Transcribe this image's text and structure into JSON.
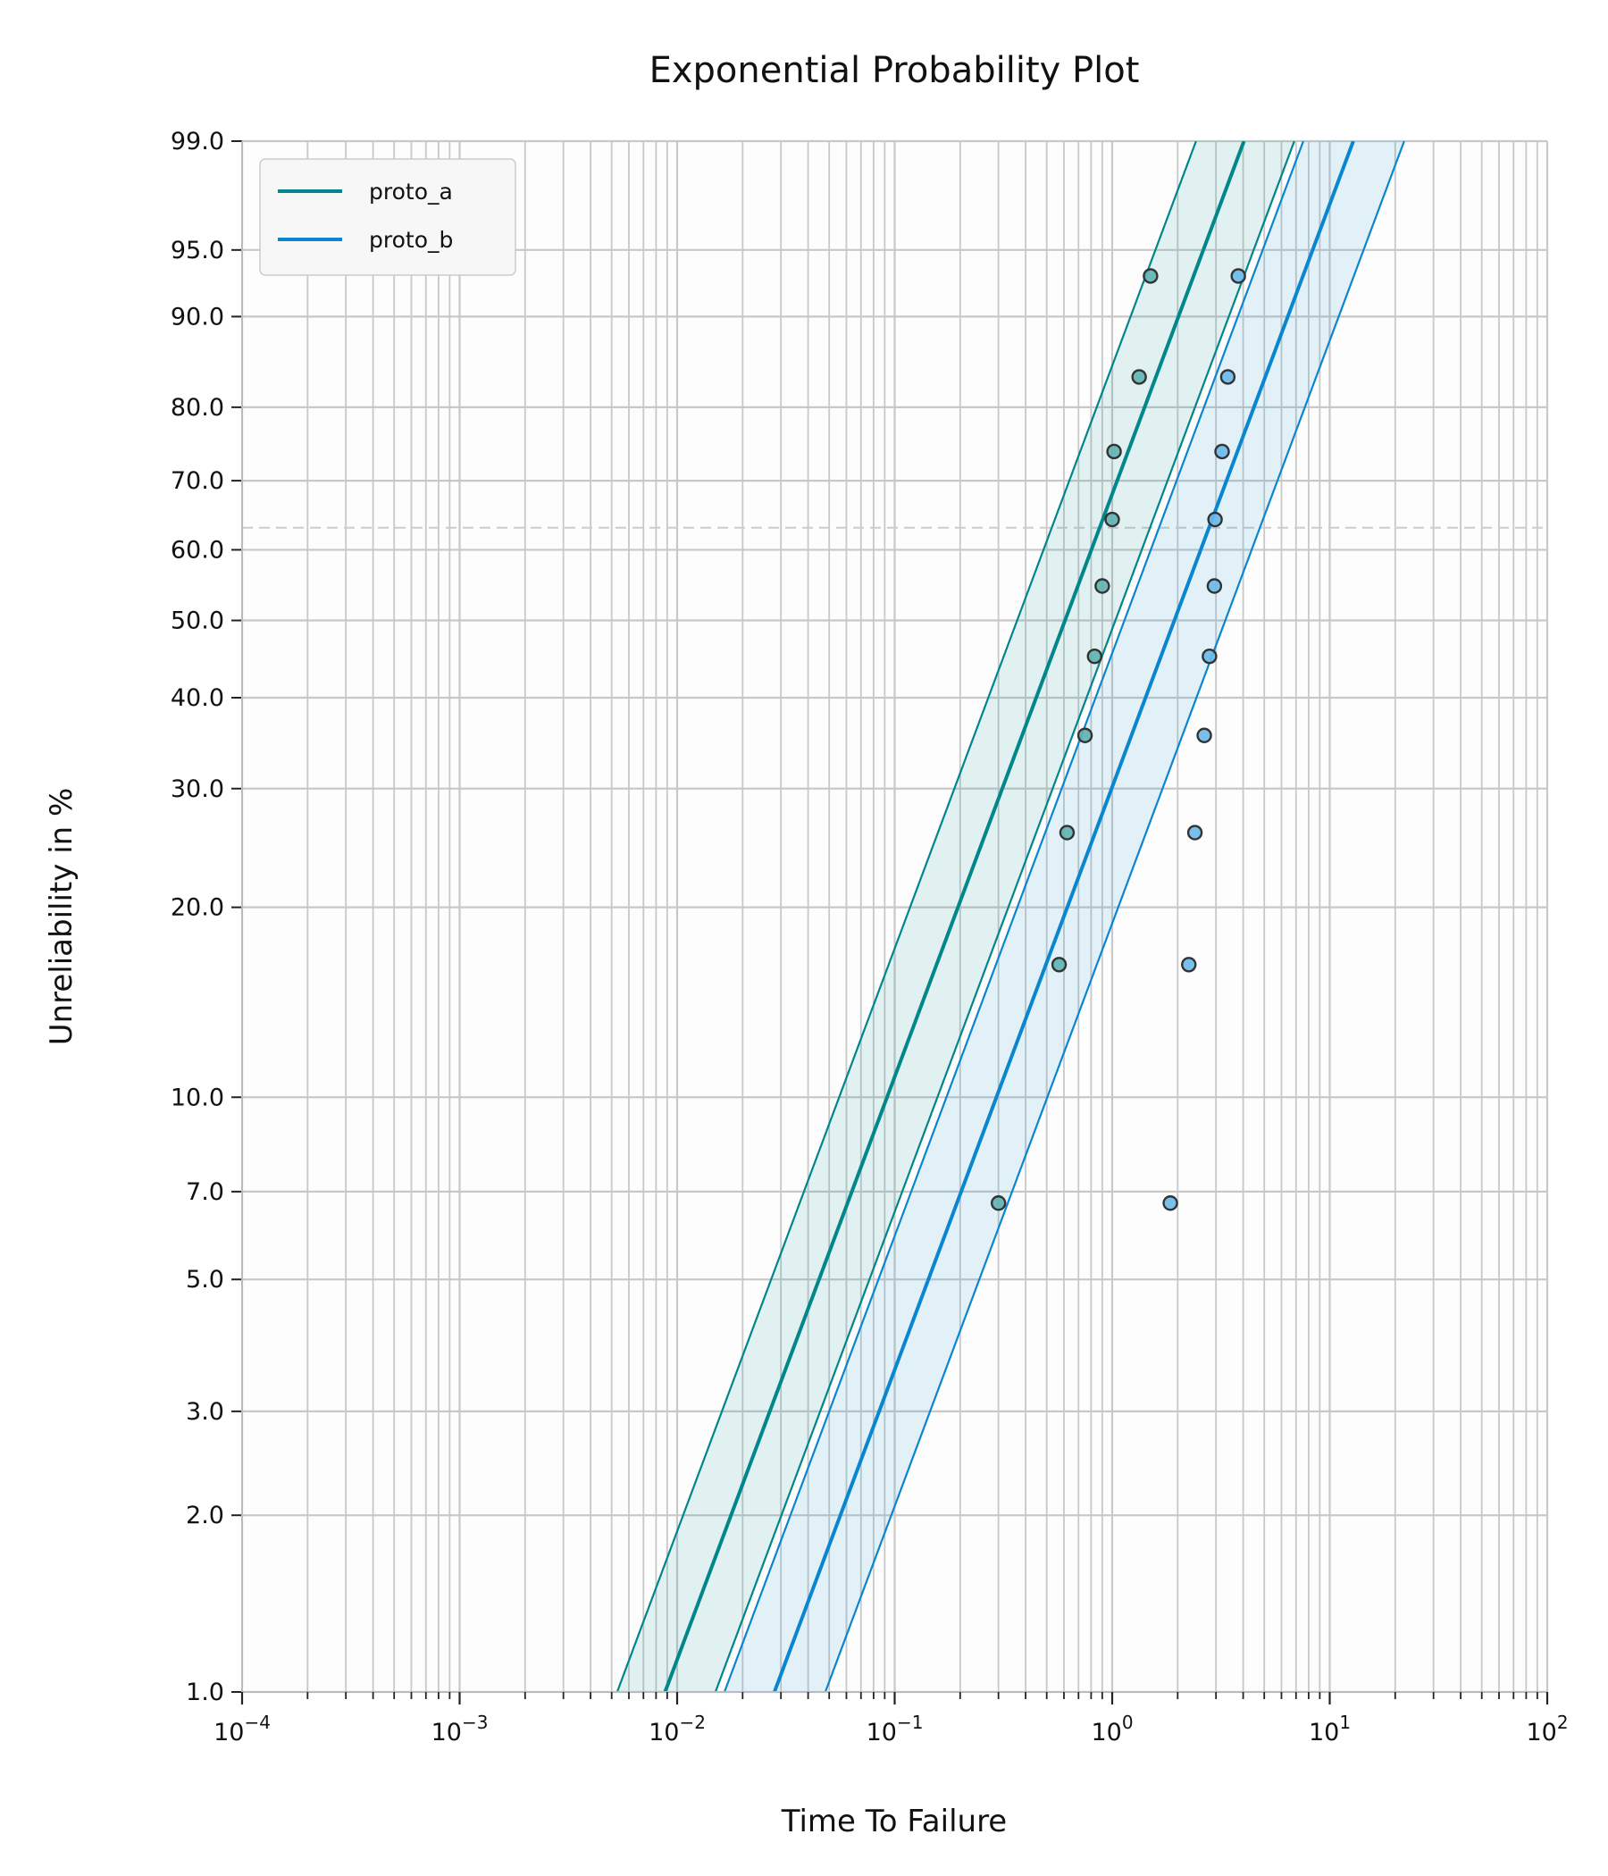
{
  "chart_data": {
    "type": "scatter",
    "title": "Exponential Probability Plot",
    "xlabel": "Time To Failure",
    "ylabel": "Unreliability in %",
    "x_scale": "log",
    "y_scale": "exponential-probability",
    "xlim": [
      0.0001,
      100
    ],
    "ylim": [
      1.0,
      99.0
    ],
    "grid": true,
    "legend_position": "top-left",
    "x_ticks": [
      {
        "value": 0.0001,
        "base": "10",
        "exp": "−4"
      },
      {
        "value": 0.001,
        "base": "10",
        "exp": "−3"
      },
      {
        "value": 0.01,
        "base": "10",
        "exp": "−2"
      },
      {
        "value": 0.1,
        "base": "10",
        "exp": "−1"
      },
      {
        "value": 1,
        "base": "10",
        "exp": "0"
      },
      {
        "value": 10,
        "base": "10",
        "exp": "1"
      },
      {
        "value": 100,
        "base": "10",
        "exp": "2"
      }
    ],
    "y_ticks": [
      {
        "value": 1.0,
        "label": "1.0"
      },
      {
        "value": 2.0,
        "label": "2.0"
      },
      {
        "value": 3.0,
        "label": "3.0"
      },
      {
        "value": 5.0,
        "label": "5.0"
      },
      {
        "value": 7.0,
        "label": "7.0"
      },
      {
        "value": 10.0,
        "label": "10.0"
      },
      {
        "value": 20.0,
        "label": "20.0"
      },
      {
        "value": 30.0,
        "label": "30.0"
      },
      {
        "value": 40.0,
        "label": "40.0"
      },
      {
        "value": 50.0,
        "label": "50.0"
      },
      {
        "value": 60.0,
        "label": "60.0"
      },
      {
        "value": 70.0,
        "label": "70.0"
      },
      {
        "value": 80.0,
        "label": "80.0"
      },
      {
        "value": 90.0,
        "label": "90.0"
      },
      {
        "value": 95.0,
        "label": "95.0"
      },
      {
        "value": 99.0,
        "label": "99.0"
      }
    ],
    "reference_line_y": 63.2,
    "series": [
      {
        "name": "proto_a",
        "color": "#00868B",
        "fit_x_at_1pct": 0.0088,
        "lower_x_at_1pct": 0.0053,
        "upper_x_at_1pct": 0.015,
        "points": [
          {
            "x": 0.3,
            "y": 6.7
          },
          {
            "x": 0.57,
            "y": 16.3
          },
          {
            "x": 0.62,
            "y": 25.9
          },
          {
            "x": 0.75,
            "y": 35.6
          },
          {
            "x": 0.83,
            "y": 45.2
          },
          {
            "x": 0.9,
            "y": 54.8
          },
          {
            "x": 1.0,
            "y": 64.4
          },
          {
            "x": 1.02,
            "y": 74.1
          },
          {
            "x": 1.33,
            "y": 83.7
          },
          {
            "x": 1.5,
            "y": 93.3
          }
        ]
      },
      {
        "name": "proto_b",
        "color": "#0A86D1",
        "fit_x_at_1pct": 0.028,
        "lower_x_at_1pct": 0.0165,
        "upper_x_at_1pct": 0.048,
        "points": [
          {
            "x": 1.85,
            "y": 6.7
          },
          {
            "x": 2.25,
            "y": 16.3
          },
          {
            "x": 2.4,
            "y": 25.9
          },
          {
            "x": 2.65,
            "y": 35.6
          },
          {
            "x": 2.8,
            "y": 45.2
          },
          {
            "x": 2.95,
            "y": 54.8
          },
          {
            "x": 2.97,
            "y": 64.4
          },
          {
            "x": 3.2,
            "y": 74.1
          },
          {
            "x": 3.4,
            "y": 83.7
          },
          {
            "x": 3.8,
            "y": 93.3
          }
        ]
      }
    ]
  }
}
